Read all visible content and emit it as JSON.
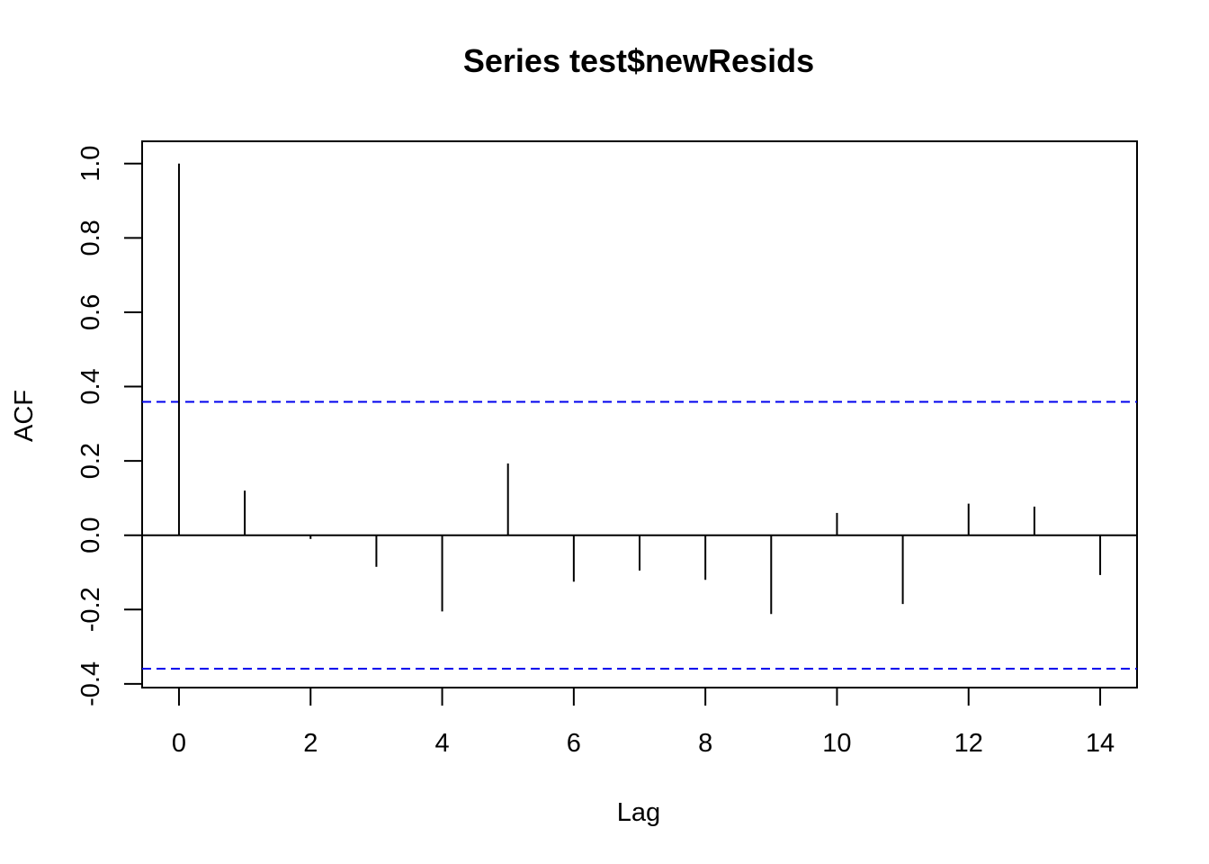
{
  "chart_data": {
    "type": "bar",
    "title": "Series  test$newResids",
    "xlabel": "Lag",
    "ylabel": "ACF",
    "xlim": [
      -0.56,
      14.56
    ],
    "ylim": [
      -0.41,
      1.06
    ],
    "x_ticks": [
      0,
      2,
      4,
      6,
      8,
      10,
      12,
      14
    ],
    "x_tick_labels": [
      "0",
      "2",
      "4",
      "6",
      "8",
      "10",
      "12",
      "14"
    ],
    "y_ticks": [
      -0.4,
      -0.2,
      0.0,
      0.2,
      0.4,
      0.6,
      0.8,
      1.0
    ],
    "y_tick_labels": [
      "-0.4",
      "-0.2",
      "0.0",
      "0.2",
      "0.4",
      "0.6",
      "0.8",
      "1.0"
    ],
    "grid": false,
    "lags": [
      0,
      1,
      2,
      3,
      4,
      5,
      6,
      7,
      8,
      9,
      10,
      11,
      12,
      13,
      14
    ],
    "values": [
      1.0,
      0.12,
      -0.01,
      -0.085,
      -0.205,
      0.193,
      -0.125,
      -0.095,
      -0.12,
      -0.212,
      0.06,
      -0.185,
      0.085,
      0.077,
      -0.107
    ],
    "confidence_bounds": [
      0.359,
      -0.359
    ],
    "colors": {
      "bars": "#000000",
      "confidence": "#0000ee",
      "axes": "#000000"
    }
  }
}
